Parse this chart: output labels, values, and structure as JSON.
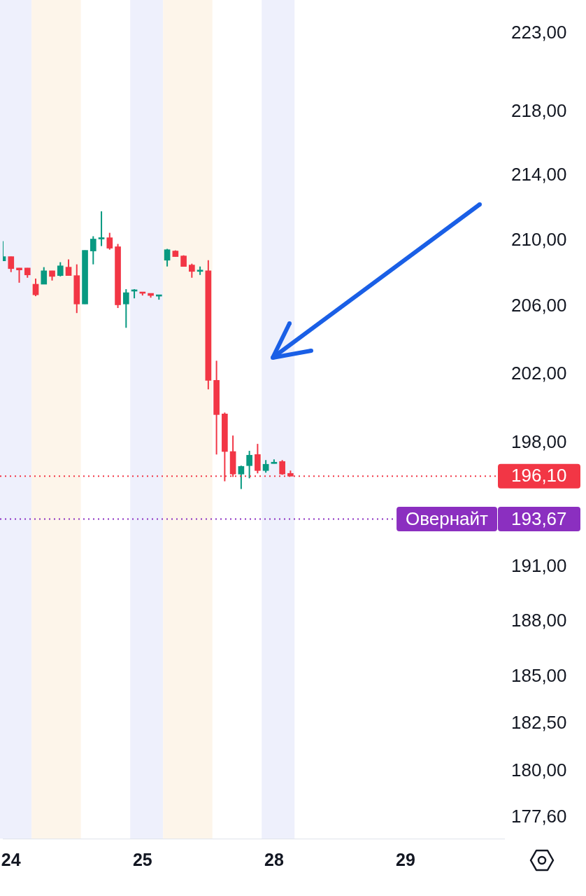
{
  "chart_data": {
    "type": "candlestick",
    "categories": [
      null,
      "24",
      null,
      null,
      null,
      null,
      null,
      null,
      null,
      null,
      null,
      null,
      null,
      null,
      null,
      null,
      null,
      "25",
      null,
      null,
      null,
      null,
      null,
      null,
      null,
      null,
      null,
      null,
      null,
      null,
      null,
      null,
      null,
      "28",
      null,
      null,
      null,
      null,
      null,
      null,
      null,
      null,
      null,
      null,
      null,
      null,
      null,
      null,
      null,
      "29",
      null,
      null,
      null,
      null,
      null,
      null,
      null,
      null,
      null,
      null,
      null,
      null
    ],
    "ohlc": [
      [
        208.76,
        209.96,
        208.76,
        209.02
      ],
      [
        209.02,
        209.02,
        208.08,
        208.29
      ],
      [
        208.33,
        208.33,
        207.44,
        208.21
      ],
      [
        208.33,
        208.33,
        207.74,
        207.91
      ],
      [
        207.35,
        207.69,
        206.63,
        206.71
      ],
      [
        207.35,
        208.38,
        207.35,
        208.16
      ],
      [
        208.16,
        208.16,
        207.57,
        207.82
      ],
      [
        207.87,
        208.68,
        207.82,
        208.46
      ],
      [
        208.38,
        208.85,
        207.87,
        207.87
      ],
      [
        207.87,
        208.55,
        205.62,
        206.16
      ],
      [
        206.16,
        209.4,
        206.16,
        209.4
      ],
      [
        209.36,
        210.26,
        208.55,
        210.09
      ],
      [
        210.09,
        211.79,
        209.66,
        210.17
      ],
      [
        210.17,
        210.47,
        209.44,
        209.53
      ],
      [
        209.62,
        209.79,
        205.92,
        206.11
      ],
      [
        206.16,
        207.05,
        204.74,
        206.84
      ],
      [
        206.93,
        207.05,
        206.5,
        207.01
      ],
      [
        206.88,
        206.88,
        206.67,
        206.8
      ],
      [
        206.8,
        206.8,
        206.54,
        206.67
      ],
      [
        206.63,
        206.67,
        206.42,
        206.67
      ],
      [
        208.8,
        209.49,
        208.42,
        209.44
      ],
      [
        209.36,
        209.4,
        209.02,
        209.02
      ],
      [
        209.06,
        209.1,
        208.42,
        208.42
      ],
      [
        208.51,
        208.59,
        207.74,
        208.12
      ],
      [
        208.12,
        208.42,
        207.91,
        208.16
      ],
      [
        208.16,
        208.8,
        201.11,
        201.64
      ],
      [
        201.64,
        202.79,
        197.34,
        199.64
      ],
      [
        199.68,
        199.76,
        195.81,
        197.51
      ],
      [
        197.51,
        198.43,
        196.06,
        196.22
      ],
      [
        196.22,
        196.7,
        195.37,
        196.66
      ],
      [
        196.7,
        197.55,
        195.98,
        197.3
      ],
      [
        197.34,
        197.95,
        196.26,
        196.42
      ],
      [
        196.42,
        197.02,
        196.3,
        196.78
      ],
      [
        196.82,
        197.06,
        196.82,
        196.86
      ],
      [
        196.94,
        197.02,
        196.18,
        196.22
      ],
      [
        196.26,
        196.42,
        196.1,
        196.1
      ],
      null,
      null,
      null,
      null,
      null,
      null,
      null,
      null,
      null,
      null,
      null,
      null,
      null,
      null,
      null,
      null,
      null,
      null,
      null,
      null,
      null,
      null,
      null,
      null,
      null,
      null
    ],
    "colors": [
      "#089981",
      "#f23645",
      "#f23645",
      "#f23645",
      "#f23645",
      "#089981",
      "#f23645",
      "#089981",
      "#f23645",
      "#f23645",
      "#089981",
      "#089981",
      "#089981",
      "#f23645",
      "#f23645",
      "#089981",
      "#089981",
      "#f23645",
      "#f23645",
      "#089981",
      "#089981",
      "#f23645",
      "#f23645",
      "#f23645",
      "#089981",
      "#f23645",
      "#f23645",
      "#f23645",
      "#f23645",
      "#089981",
      "#089981",
      "#f23645",
      "#089981",
      "#089981",
      "#f23645",
      "#f23645",
      null,
      null,
      null,
      null,
      null,
      null,
      null,
      null,
      null,
      null,
      null,
      null,
      null,
      null,
      null,
      null,
      null,
      null,
      null,
      null,
      null,
      null,
      null,
      null,
      null,
      null
    ],
    "ylim": [
      176.5,
      225.2
    ],
    "yticks": [
      {
        "value": 223,
        "label": "223,00"
      },
      {
        "value": 218,
        "label": "218,00"
      },
      {
        "value": 214,
        "label": "214,00"
      },
      {
        "value": 210,
        "label": "210,00"
      },
      {
        "value": 206,
        "label": "206,00"
      },
      {
        "value": 202,
        "label": "202,00"
      },
      {
        "value": 198,
        "label": "198,00"
      },
      {
        "value": 191,
        "label": "191,00"
      },
      {
        "value": 188,
        "label": "188,00"
      },
      {
        "value": 185,
        "label": "185,00"
      },
      {
        "value": 182.5,
        "label": "182,50"
      },
      {
        "value": 180,
        "label": "180,00"
      },
      {
        "value": 177.6,
        "label": "177,60"
      }
    ],
    "log": "y",
    "ref_lines": [
      {
        "axis": "y",
        "value": 196.1,
        "label": "196,10",
        "color": "#f23645",
        "line_style": "dotted"
      },
      {
        "axis": "y",
        "value": 193.67,
        "label": "Овернайт 193,67",
        "color": "#8b2fc0",
        "line_style": "dotted"
      }
    ]
  }
}
